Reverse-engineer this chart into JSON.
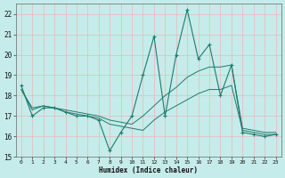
{
  "title": "",
  "xlabel": "Humidex (Indice chaleur)",
  "bg_color": "#c5ecea",
  "grid_color": "#e8b8b8",
  "line_color": "#1e7b6e",
  "xlim": [
    -0.5,
    23.5
  ],
  "ylim": [
    15,
    22.5
  ],
  "xticks": [
    0,
    1,
    2,
    3,
    4,
    5,
    6,
    7,
    8,
    9,
    10,
    11,
    12,
    13,
    14,
    15,
    16,
    17,
    18,
    19,
    20,
    21,
    22,
    23
  ],
  "yticks": [
    15,
    16,
    17,
    18,
    19,
    20,
    21,
    22
  ],
  "line1_x": [
    0,
    1,
    2,
    3,
    4,
    5,
    6,
    7,
    8,
    9,
    10,
    11,
    12,
    13,
    14,
    15,
    16,
    17,
    18,
    19,
    20,
    21,
    22,
    23
  ],
  "line1_y": [
    18.5,
    17.0,
    17.4,
    17.4,
    17.2,
    17.0,
    17.0,
    16.8,
    15.3,
    16.2,
    17.0,
    19.0,
    20.9,
    17.0,
    20.0,
    22.2,
    19.8,
    20.5,
    18.0,
    19.5,
    16.2,
    16.1,
    16.0,
    16.1
  ],
  "line2_x": [
    0,
    1,
    2,
    3,
    4,
    5,
    6,
    7,
    8,
    9,
    10,
    11,
    12,
    13,
    14,
    15,
    16,
    17,
    18,
    19,
    20,
    21,
    22,
    23
  ],
  "line2_y": [
    18.3,
    17.4,
    17.5,
    17.4,
    17.3,
    17.2,
    17.1,
    17.0,
    16.8,
    16.7,
    16.6,
    17.0,
    17.5,
    18.0,
    18.4,
    18.9,
    19.2,
    19.4,
    19.4,
    19.5,
    16.4,
    16.3,
    16.2,
    16.2
  ],
  "line3_x": [
    0,
    1,
    2,
    3,
    4,
    5,
    6,
    7,
    8,
    9,
    10,
    11,
    12,
    13,
    14,
    15,
    16,
    17,
    18,
    19,
    20,
    21,
    22,
    23
  ],
  "line3_y": [
    18.3,
    17.3,
    17.5,
    17.4,
    17.2,
    17.1,
    17.0,
    16.9,
    16.6,
    16.5,
    16.4,
    16.3,
    16.8,
    17.2,
    17.5,
    17.8,
    18.1,
    18.3,
    18.3,
    18.5,
    16.3,
    16.2,
    16.1,
    16.1
  ]
}
